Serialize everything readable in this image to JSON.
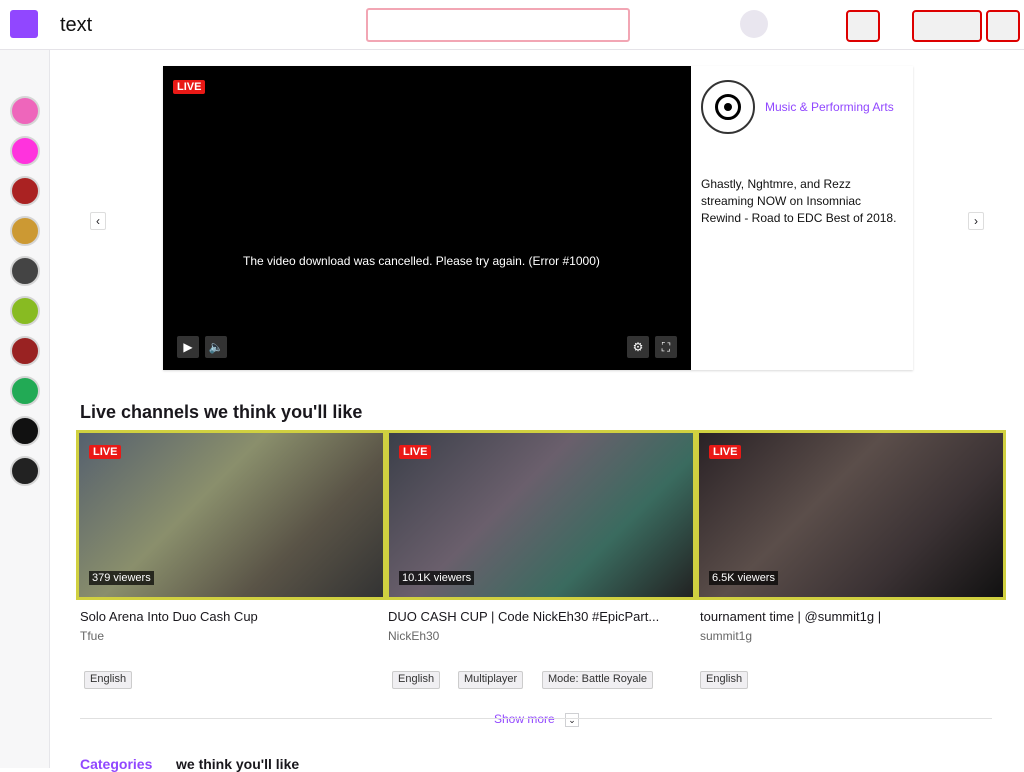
{
  "topbar": {
    "brand": "text",
    "search_placeholder": "",
    "buttons": [
      "",
      "",
      ""
    ]
  },
  "hero": {
    "live_label": "LIVE",
    "video_message": "The video download was cancelled. Please try again. (Error #1000)",
    "category": "Music & Performing Arts",
    "description": "Ghastly, Nghtmre, and Rezz streaming NOW on Insomniac Rewind - Road to EDC Best of 2018."
  },
  "sections": {
    "recommended_title": "Live channels we think you'll like",
    "categories_title_prefix": "Categories",
    "categories_title_suffix": "we think you'll like"
  },
  "cards": [
    {
      "live": "LIVE",
      "viewers": "379 viewers",
      "title": "Solo Arena Into Duo Cash Cup",
      "user": "Tfue",
      "tags": [
        "English"
      ]
    },
    {
      "live": "LIVE",
      "viewers": "10.1K viewers",
      "title": "DUO CASH CUP | Code NickEh30 #EpicPart...",
      "user": "NickEh30",
      "tags": [
        "English",
        "Multiplayer",
        "Mode: Battle Royale"
      ]
    },
    {
      "live": "LIVE",
      "viewers": "6.5K viewers",
      "title": "tournament time | @summit1g |",
      "user": "summit1g",
      "tags": [
        "English"
      ]
    }
  ],
  "show_more": "Show more"
}
